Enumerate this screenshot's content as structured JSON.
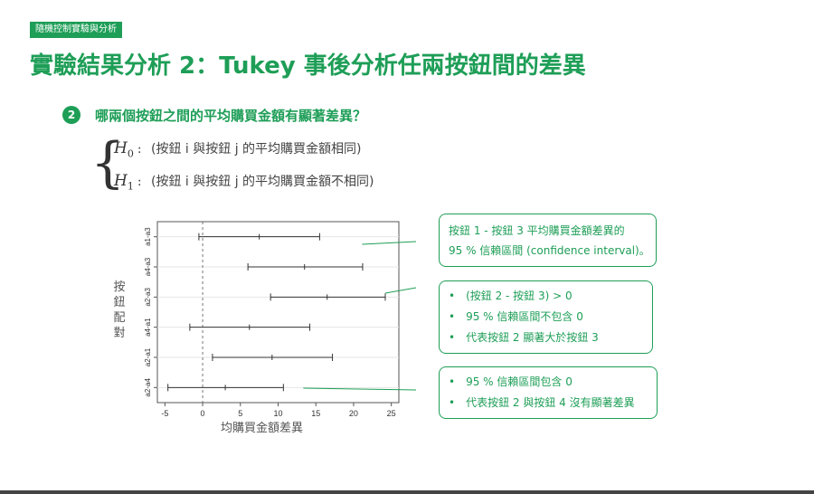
{
  "tag": "隨機控制實驗與分析",
  "title": "實驗結果分析 2：Tukey 事後分析任兩按鈕間的差異",
  "question": {
    "number": "2",
    "text": "哪兩個按鈕之間的平均購買金額有顯著差異？"
  },
  "hypotheses": {
    "h0_symbol": "H",
    "h0_sub": "0",
    "h0_text": "(按鈕 i 與按鈕 j 的平均購買金額相同)",
    "h1_symbol": "H",
    "h1_sub": "1",
    "h1_text": "(按鈕 i 與按鈕 j 的平均購買金額不相同)"
  },
  "chart_data": {
    "type": "interval",
    "xlabel": "均購買金額差異",
    "ylabel": "按鈕配對",
    "xlim": [
      -6,
      26
    ],
    "xticks": [
      -5,
      0,
      5,
      10,
      15,
      20,
      25
    ],
    "reference_line": 0,
    "intervals": [
      {
        "pair": "a1-a3",
        "lower": -0.5,
        "estimate": 7.5,
        "upper": 15.5
      },
      {
        "pair": "a4-a3",
        "lower": 6.0,
        "estimate": 13.5,
        "upper": 21.2
      },
      {
        "pair": "a2-a3",
        "lower": 9.0,
        "estimate": 16.5,
        "upper": 24.2
      },
      {
        "pair": "a4-a1",
        "lower": -1.7,
        "estimate": 6.2,
        "upper": 14.2
      },
      {
        "pair": "a2-a1",
        "lower": 1.3,
        "estimate": 9.2,
        "upper": 17.2
      },
      {
        "pair": "a2-a4",
        "lower": -4.6,
        "estimate": 3.0,
        "upper": 10.7
      }
    ]
  },
  "callouts": {
    "c1": {
      "line1": "按鈕 1 - 按鈕 3 平均購買金額差異的",
      "line2": "95 % 信賴區間 (confidence interval)。"
    },
    "c2": {
      "items": [
        "(按鈕 2 - 按鈕 3) > 0",
        "95 % 信賴區間不包含 0",
        "代表按鈕 2 顯著大於按鈕 3"
      ]
    },
    "c3": {
      "items": [
        "95 % 信賴區間包含 0",
        "代表按鈕 2 與按鈕 4 沒有顯著差異"
      ]
    }
  },
  "colors": {
    "accent": "#1e9e57",
    "interval": "#333333",
    "zero_line": "#777777"
  }
}
